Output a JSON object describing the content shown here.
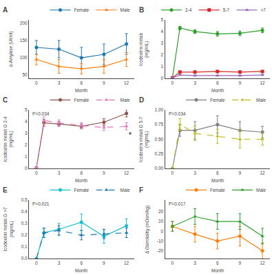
{
  "chart_data": [
    {
      "type": "line",
      "title": "A",
      "x_label": "Month",
      "y_label": "α-Amylase (UI/ml)",
      "x": [
        0,
        3,
        6,
        9,
        12
      ],
      "series": [
        {
          "name": "Female",
          "marker": "circle",
          "line_style": "solid",
          "values": [
            130,
            125,
            100,
            110,
            140
          ],
          "errors": [
            20,
            25,
            30,
            30,
            30
          ]
        },
        {
          "name": "Male",
          "marker": "triangle-up",
          "line_style": "solid",
          "values": [
            95,
            75,
            68,
            75,
            95
          ],
          "errors": [
            15,
            20,
            15,
            20,
            20
          ]
        }
      ],
      "xlim": [
        -1,
        13
      ],
      "xticks": [
        0,
        3,
        6,
        9,
        12
      ],
      "ylim": [
        40,
        210
      ],
      "yticks": [
        50,
        100,
        150,
        200
      ],
      "grid": false,
      "legend": "upper right"
    },
    {
      "type": "line",
      "title": "B",
      "x_label": "Month",
      "y_label": "Icodextrin metab\n(mg/mL)",
      "x": [
        0,
        1,
        3,
        6,
        9,
        12
      ],
      "series": [
        {
          "name": "2-4",
          "marker": "circle",
          "line_style": "solid",
          "values": [
            0.05,
            4.3,
            4.0,
            3.8,
            3.85,
            4.1
          ],
          "errors": [
            0.02,
            0.15,
            0.15,
            0.2,
            0.2,
            0.2
          ]
        },
        {
          "name": "5-7",
          "marker": "square",
          "line_style": "solid",
          "values": [
            0.05,
            0.55,
            0.55,
            0.6,
            0.55,
            0.6
          ],
          "errors": [
            0.02,
            0.05,
            0.05,
            0.05,
            0.05,
            0.05
          ]
        },
        {
          "name": ">7",
          "marker": "triangle-up",
          "line_style": "solid",
          "values": [
            0.05,
            0.3,
            0.25,
            0.25,
            0.25,
            0.3
          ],
          "errors": [
            0.02,
            0.03,
            0.03,
            0.03,
            0.03,
            0.03
          ]
        }
      ],
      "xlim": [
        -1,
        13
      ],
      "xticks": [
        0,
        3,
        6,
        9,
        12
      ],
      "ylim": [
        0,
        5
      ],
      "yticks": [
        0,
        1,
        2,
        3,
        4,
        5
      ],
      "grid": false,
      "legend": "upper right"
    },
    {
      "type": "line",
      "title": "C",
      "x_label": "Month",
      "y_label": "Icodextrin metab G 2-4\n(mg/mL)",
      "x": [
        0,
        1,
        3,
        6,
        9,
        12
      ],
      "series": [
        {
          "name": "Female",
          "marker": "circle",
          "line_style": "solid",
          "values": [
            0.07,
            3.9,
            3.8,
            3.6,
            3.95,
            4.7
          ],
          "errors": [
            0.03,
            0.3,
            0.2,
            0.2,
            0.3,
            0.3
          ]
        },
        {
          "name": "Male",
          "marker": "triangle-up",
          "line_style": "dashed",
          "values": [
            0.07,
            4.1,
            3.9,
            3.65,
            3.5,
            3.6
          ],
          "errors": [
            0.03,
            0.3,
            0.25,
            0.25,
            0.25,
            0.3
          ]
        }
      ],
      "annotations": [
        {
          "text": "P=0.034"
        },
        {
          "text": "*",
          "x": 12.5,
          "y": 2.85
        }
      ],
      "xlim": [
        -1,
        13
      ],
      "xticks": [
        0,
        3,
        6,
        9,
        12
      ],
      "ylim": [
        0,
        5
      ],
      "yticks": [
        0,
        1,
        2,
        3,
        4,
        5
      ],
      "grid": false,
      "legend": "upper right"
    },
    {
      "type": "line",
      "title": "D",
      "x_label": "Month",
      "y_label": "Icodextrin metab G 5-7\n(mg/mL)",
      "x": [
        0,
        1,
        3,
        6,
        9,
        12
      ],
      "series": [
        {
          "name": "Female",
          "marker": "circle",
          "line_style": "solid",
          "values": [
            0.0,
            0.65,
            0.65,
            0.75,
            0.65,
            0.62
          ],
          "errors": [
            0.0,
            0.1,
            0.15,
            0.15,
            0.15,
            0.1
          ]
        },
        {
          "name": "Male",
          "marker": "triangle-up",
          "line_style": "dashed",
          "values": [
            0.0,
            0.75,
            0.6,
            0.55,
            0.5,
            0.5
          ],
          "errors": [
            0.0,
            0.1,
            0.12,
            0.12,
            0.15,
            0.1
          ]
        }
      ],
      "annotations": [
        {
          "text": "P=0.034"
        }
      ],
      "xlim": [
        -1,
        13
      ],
      "xticks": [
        0,
        3,
        6,
        9,
        12
      ],
      "ylim": [
        0.0,
        1.0
      ],
      "yticks": [
        {
          "value": 0.0,
          "label": "0.00"
        },
        0.25,
        {
          "value": 0.5,
          "label": "0.50"
        },
        0.75,
        {
          "value": 1.0,
          "label": "1.00"
        }
      ],
      "grid": false,
      "legend": "upper right"
    },
    {
      "type": "line",
      "title": "E",
      "x_label": "Month",
      "y_label": "Icodextrin metab G >7\n(mg/mL)",
      "x": [
        0,
        1,
        3,
        6,
        9,
        12
      ],
      "series": [
        {
          "name": "Female",
          "marker": "circle",
          "line_style": "solid",
          "values": [
            0.0,
            0.22,
            0.25,
            0.31,
            0.19,
            0.28
          ],
          "errors": [
            0.0,
            0.04,
            0.05,
            0.07,
            0.06,
            0.06
          ]
        },
        {
          "name": "Male",
          "marker": "triangle-up",
          "line_style": "dashed",
          "values": [
            0.0,
            0.22,
            0.24,
            0.2,
            0.21,
            0.22
          ],
          "errors": [
            0.0,
            0.04,
            0.04,
            0.04,
            0.04,
            0.04
          ]
        }
      ],
      "annotations": [
        {
          "text": "P=0.021"
        }
      ],
      "xlim": [
        -1,
        13
      ],
      "xticks": [
        0,
        3,
        6,
        9,
        12
      ],
      "ylim": [
        0.0,
        0.5
      ],
      "yticks": [
        {
          "value": 0.0,
          "label": "0.0"
        },
        0.1,
        0.2,
        0.3,
        0.4,
        0.5
      ],
      "grid": false,
      "legend": "upper right"
    },
    {
      "type": "line",
      "title": "F",
      "x_label": "Month",
      "y_label": "Δ Osmolality (mOsm/kg)",
      "x": [
        0,
        3,
        6,
        9,
        12
      ],
      "series": [
        {
          "name": "Female",
          "marker": "circle",
          "line_style": "solid",
          "values": [
            5,
            -3,
            -10,
            -5,
            -20
          ],
          "errors": [
            5,
            8,
            8,
            10,
            8
          ]
        },
        {
          "name": "Male",
          "marker": "triangle-up",
          "line_style": "solid",
          "values": [
            5,
            15,
            10,
            10,
            -5
          ],
          "errors": [
            5,
            8,
            8,
            8,
            8
          ]
        }
      ],
      "annotations": [
        {
          "text": "P=0.017"
        }
      ],
      "xlim": [
        -1,
        13
      ],
      "xticks": [
        0,
        3,
        6,
        9,
        12
      ],
      "ylim": [
        -28,
        32
      ],
      "yticks": [
        -20,
        -10,
        0,
        10,
        20
      ],
      "grid": false,
      "legend": "upper right"
    }
  ]
}
